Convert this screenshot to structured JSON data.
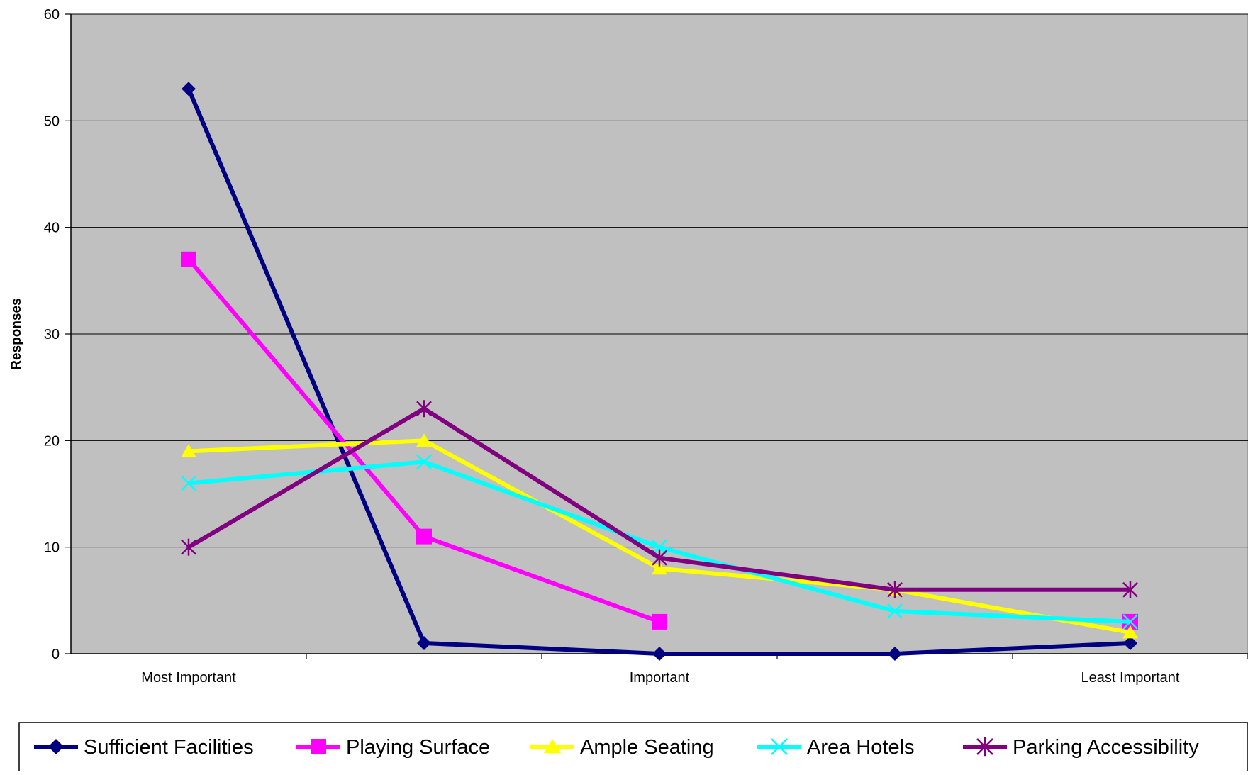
{
  "chart_data": {
    "type": "line",
    "ylabel": "Responses",
    "xlabel": "",
    "ylim": [
      0,
      60
    ],
    "yticks": [
      0,
      10,
      20,
      30,
      40,
      50,
      60
    ],
    "grid": true,
    "legend_position": "bottom",
    "plot_background": "#C0C0C0",
    "categories": [
      "Most Important",
      "",
      "Important",
      "",
      "Least Important"
    ],
    "series": [
      {
        "name": "Sufficient Facilities",
        "color": "#000080",
        "marker": "diamond",
        "values": [
          53,
          1,
          0,
          0,
          1
        ]
      },
      {
        "name": "Playing Surface",
        "color": "#FF00FF",
        "marker": "square",
        "values": [
          37,
          11,
          3,
          null,
          3
        ]
      },
      {
        "name": "Ample Seating",
        "color": "#FFFF00",
        "marker": "triangle",
        "values": [
          19,
          20,
          8,
          6,
          2
        ]
      },
      {
        "name": "Area Hotels",
        "color": "#00FFFF",
        "marker": "x",
        "values": [
          16,
          18,
          10,
          4,
          3
        ]
      },
      {
        "name": "Parking Accessibility",
        "color": "#800080",
        "marker": "star",
        "values": [
          10,
          23,
          9,
          6,
          6
        ]
      }
    ]
  }
}
